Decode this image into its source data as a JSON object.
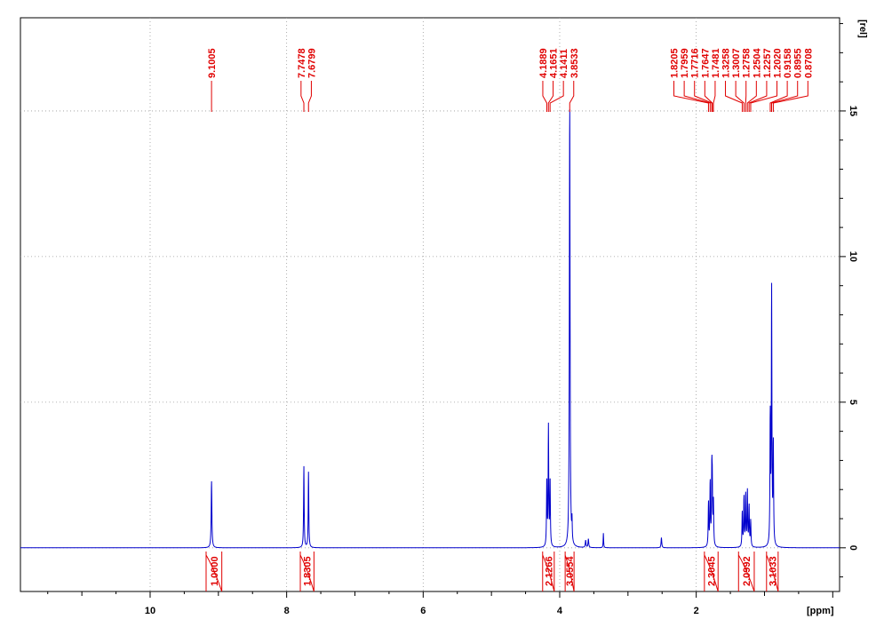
{
  "chart_data": {
    "type": "line",
    "title": "",
    "x_unit_label": "[ppm]",
    "y_unit_label": "[rel]",
    "xlim": [
      11.9,
      -0.1
    ],
    "ylim": [
      -1.5,
      18.2
    ],
    "x_ticks": [
      "10",
      "8",
      "6",
      "4",
      "2"
    ],
    "x_tick_values": [
      10,
      8,
      6,
      4,
      2
    ],
    "y_ticks": [
      "0",
      "5",
      "10",
      "15"
    ],
    "y_tick_values": [
      0,
      5,
      10,
      15
    ],
    "grid": true,
    "colors": {
      "spectrum": "#0000cc",
      "annotation": "#e00000",
      "grid": "#9a9a9a",
      "axis": "#000000"
    },
    "peaks": [
      {
        "ppm": 9.1005,
        "height": 2.3,
        "width": 0.006
      },
      {
        "ppm": 7.7478,
        "height": 2.8,
        "width": 0.005
      },
      {
        "ppm": 7.6799,
        "height": 2.6,
        "width": 0.005
      },
      {
        "ppm": 4.1889,
        "height": 2.3,
        "width": 0.005
      },
      {
        "ppm": 4.1651,
        "height": 4.1,
        "width": 0.005
      },
      {
        "ppm": 4.1411,
        "height": 2.3,
        "width": 0.005
      },
      {
        "ppm": 3.8533,
        "height": 15.3,
        "width": 0.006
      },
      {
        "ppm": 3.82,
        "height": 0.7,
        "width": 0.004
      },
      {
        "ppm": 3.62,
        "height": 0.25,
        "width": 0.006
      },
      {
        "ppm": 3.58,
        "height": 0.3,
        "width": 0.006
      },
      {
        "ppm": 3.36,
        "height": 0.5,
        "width": 0.004
      },
      {
        "ppm": 2.51,
        "height": 0.35,
        "width": 0.006
      },
      {
        "ppm": 1.8205,
        "height": 1.5,
        "width": 0.005
      },
      {
        "ppm": 1.7959,
        "height": 2.2,
        "width": 0.005
      },
      {
        "ppm": 1.7716,
        "height": 2.4,
        "width": 0.005
      },
      {
        "ppm": 1.7647,
        "height": 1.8,
        "width": 0.005
      },
      {
        "ppm": 1.7481,
        "height": 1.5,
        "width": 0.005
      },
      {
        "ppm": 1.3258,
        "height": 1.2,
        "width": 0.005
      },
      {
        "ppm": 1.3007,
        "height": 1.7,
        "width": 0.005
      },
      {
        "ppm": 1.2758,
        "height": 1.8,
        "width": 0.005
      },
      {
        "ppm": 1.2504,
        "height": 1.9,
        "width": 0.005
      },
      {
        "ppm": 1.2257,
        "height": 1.4,
        "width": 0.005
      },
      {
        "ppm": 1.202,
        "height": 0.9,
        "width": 0.005
      },
      {
        "ppm": 0.9158,
        "height": 4.4,
        "width": 0.005
      },
      {
        "ppm": 0.8955,
        "height": 8.8,
        "width": 0.005
      },
      {
        "ppm": 0.8708,
        "height": 3.5,
        "width": 0.005
      }
    ],
    "peak_label_groups": [
      {
        "labels": [
          "9.1005"
        ],
        "ppms": [
          9.1005
        ]
      },
      {
        "labels": [
          "7.7478",
          "7.6799"
        ],
        "ppms": [
          7.7478,
          7.6799
        ]
      },
      {
        "labels": [
          "4.1889",
          "4.1651",
          "4.1411",
          "3.8533"
        ],
        "ppms": [
          4.1889,
          4.1651,
          4.1411,
          3.8533
        ]
      },
      {
        "labels": [
          "1.8205",
          "1.7959",
          "1.7716",
          "1.7647",
          "1.7481",
          "1.3258",
          "1.3007",
          "1.2758",
          "1.2504",
          "1.2257",
          "1.2020",
          "0.9158",
          "0.8955",
          "0.8708"
        ],
        "ppms": [
          1.8205,
          1.7959,
          1.7716,
          1.7647,
          1.7481,
          1.3258,
          1.3007,
          1.2758,
          1.2504,
          1.2257,
          1.202,
          0.9158,
          0.8955,
          0.8708
        ]
      }
    ],
    "integrals": [
      {
        "value": "1.0000",
        "from": 9.18,
        "to": 8.95
      },
      {
        "value": "1.8305",
        "from": 7.8,
        "to": 7.6
      },
      {
        "value": "2.1266",
        "from": 4.25,
        "to": 4.08
      },
      {
        "value": "3.0554",
        "from": 3.92,
        "to": 3.79
      },
      {
        "value": "2.3045",
        "from": 1.88,
        "to": 1.68
      },
      {
        "value": "2.0992",
        "from": 1.38,
        "to": 1.15
      },
      {
        "value": "3.1033",
        "from": 0.97,
        "to": 0.8
      }
    ]
  }
}
